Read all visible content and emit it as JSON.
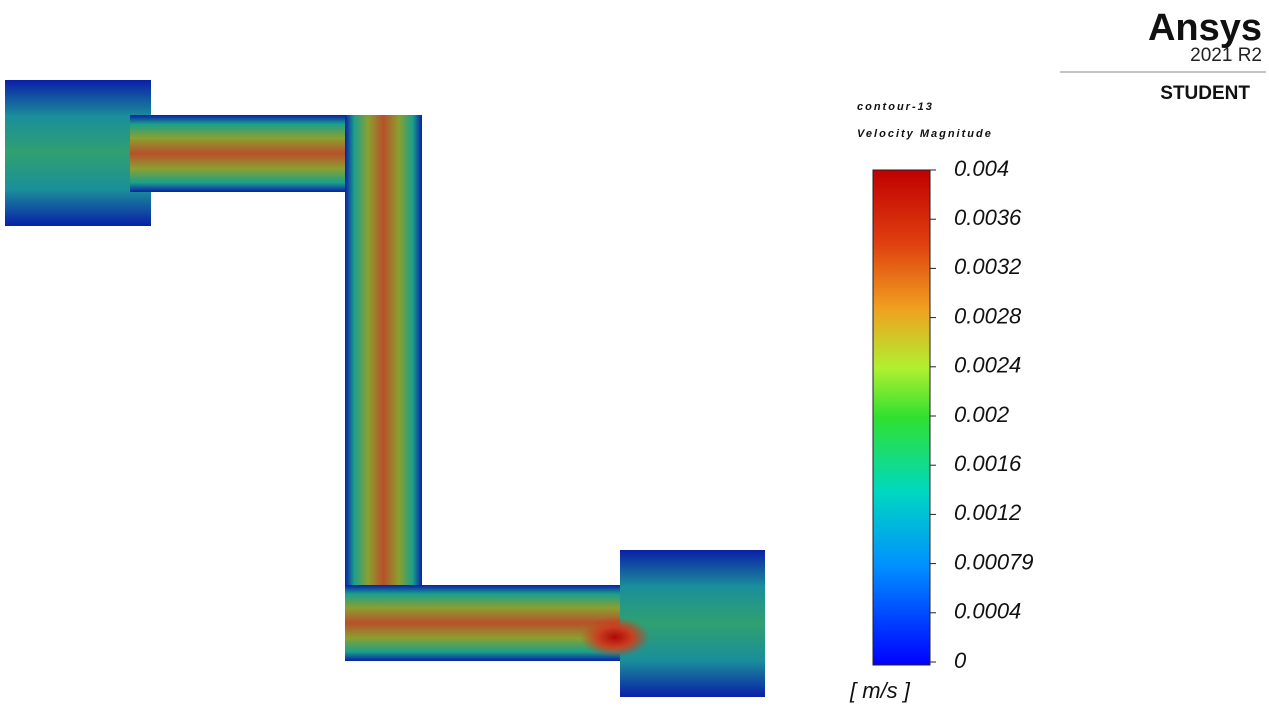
{
  "logo": {
    "brand": "Ansys",
    "version": "2021 R2",
    "edition": "STUDENT"
  },
  "legend": {
    "title": "contour-13",
    "quantity": "Velocity Magnitude",
    "units": "[ m/s ]",
    "ticks": [
      0.004,
      0.0036,
      0.0032,
      0.0028,
      0.0024,
      0.002,
      0.0016,
      0.0012,
      0.00079,
      0.0004,
      0
    ]
  }
}
